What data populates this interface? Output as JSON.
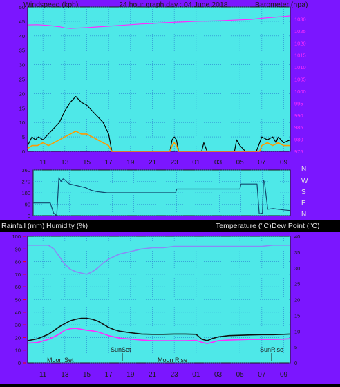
{
  "header": {
    "left": "Windspeed (kph)",
    "center": "24 hour graph day : 04 June 2018",
    "right": "Barometer (hpa)"
  },
  "x_ticks": [
    "11",
    "13",
    "15",
    "17",
    "19",
    "21",
    "23",
    "01",
    "03",
    "05",
    "07",
    "09"
  ],
  "compass": [
    "N",
    "W",
    "S",
    "E",
    "N"
  ],
  "labels_bottom": {
    "rain": "Rainfall (mm)",
    "humidity": "Humidity (%)",
    "temperature": "Temperature (°C)",
    "dewpoint": "Dew Point (°C)"
  },
  "events": [
    "Moon Set",
    "SunSet",
    "Moon Rise",
    "SunRise"
  ],
  "colors": {
    "panel_bg": "#000000",
    "frame": "#7b16ff",
    "plot_bg": "#4ee8e8",
    "grid": "#2a7fd0",
    "baro": "#ff2cff",
    "wind_avg": "#ff9a00",
    "wind_gust": "#000000",
    "humidity": "#8a8af5",
    "temperature": "#101010",
    "dewpoint": "#ff2cff",
    "rain_axis": "#e0002a",
    "text": "#1a1a1a"
  },
  "chart_data": [
    {
      "type": "line",
      "title": "24 hour graph day : 04 June 2018",
      "ylabel": "Windspeed (kph)",
      "ylabel_right": "Barometer (hpa)",
      "ylim": [
        0,
        50
      ],
      "ylim_right": [
        975,
        1035
      ],
      "yticks": [
        0,
        5,
        10,
        15,
        20,
        25,
        30,
        35,
        40,
        45,
        50
      ],
      "yticks_right": [
        975,
        980,
        985,
        990,
        995,
        1000,
        1005,
        1010,
        1015,
        1020,
        1025,
        1030
      ],
      "series": [
        {
          "name": "Barometer (hpa)",
          "x": [
            9.6,
            10.5,
            11.5,
            12.5,
            13,
            13.5,
            14,
            15,
            16,
            17,
            18,
            19,
            20,
            21,
            22,
            23,
            24,
            25,
            26,
            27,
            28,
            29,
            30,
            31,
            32,
            33,
            33.6
          ],
          "values": [
            1027.5,
            1027.6,
            1027.3,
            1026.8,
            1026.3,
            1026.1,
            1026.2,
            1026.4,
            1026.7,
            1027.0,
            1027.3,
            1027.6,
            1027.9,
            1028.1,
            1028.4,
            1028.6,
            1028.8,
            1029.0,
            1029.1,
            1029.2,
            1029.4,
            1029.6,
            1029.8,
            1030.3,
            1030.7,
            1031.0,
            1031.3
          ]
        },
        {
          "name": "Wind gust",
          "x": [
            9.6,
            10,
            10.3,
            10.6,
            11,
            11.5,
            12,
            12.5,
            13,
            13.5,
            14,
            14.5,
            15,
            15.5,
            16,
            16.5,
            17,
            17.3,
            20,
            22.6,
            22.8,
            23,
            23.2,
            23.4,
            24,
            25.5,
            25.7,
            26,
            27,
            28.5,
            28.7,
            29,
            29.5,
            30.5,
            30.8,
            31,
            31.5,
            32,
            32.3,
            32.5,
            33,
            33.6
          ],
          "values": [
            2,
            5,
            4,
            5,
            4,
            6,
            8,
            10,
            14,
            17,
            19,
            17,
            16,
            14,
            12,
            10,
            6,
            0,
            0,
            0,
            4,
            5,
            4,
            0,
            0,
            0,
            3,
            0,
            0,
            0,
            4,
            2,
            0,
            0,
            3,
            5,
            4,
            5,
            3,
            5,
            3,
            4
          ]
        },
        {
          "name": "Wind average",
          "x": [
            9.6,
            10,
            10.5,
            11,
            11.5,
            12,
            12.5,
            13,
            13.5,
            14,
            14.5,
            15,
            15.5,
            16,
            16.5,
            17,
            17.3,
            20,
            22.6,
            22.8,
            23,
            23.2,
            23.4,
            24,
            30.8,
            31,
            31.5,
            32,
            32.5,
            33,
            33.6
          ],
          "values": [
            1,
            2,
            2,
            3,
            2,
            3,
            4,
            5,
            6,
            7,
            6,
            6,
            5,
            4,
            3,
            2,
            0,
            0,
            0,
            2,
            3,
            2,
            0,
            0,
            0,
            2,
            3,
            2,
            3,
            2,
            2
          ]
        }
      ]
    },
    {
      "type": "line",
      "ylim": [
        0,
        360
      ],
      "yticks": [
        0,
        90,
        180,
        270,
        360
      ],
      "series": [
        {
          "name": "Wind direction",
          "x": [
            9.6,
            11.2,
            11.5,
            11.8,
            12.0,
            12.2,
            12.4,
            12.6,
            12.8,
            13,
            13.5,
            14,
            14.5,
            15,
            15.5,
            16,
            16.5,
            17,
            18,
            19,
            20,
            21,
            22,
            22.9,
            23,
            24,
            25,
            26,
            27,
            28,
            28.9,
            29,
            30,
            30.5,
            30.7,
            31,
            31.1,
            31.2,
            31.5,
            32,
            32.5,
            33,
            33.6
          ],
          "values": [
            100,
            100,
            20,
            0,
            300,
            270,
            290,
            280,
            260,
            250,
            240,
            230,
            220,
            200,
            190,
            185,
            180,
            180,
            180,
            180,
            180,
            180,
            180,
            180,
            210,
            210,
            210,
            210,
            210,
            210,
            210,
            250,
            250,
            250,
            15,
            20,
            280,
            260,
            50,
            55,
            50,
            45,
            40
          ]
        }
      ]
    },
    {
      "type": "line",
      "ylim": [
        0,
        100
      ],
      "yticks": [
        0,
        10,
        20,
        30,
        40,
        50,
        60,
        70,
        80,
        90,
        100
      ],
      "ylim_right": [
        0,
        40
      ],
      "yticks_right": [
        0,
        5,
        10,
        15,
        20,
        25,
        30,
        35,
        40
      ],
      "series": [
        {
          "name": "Humidity (%)",
          "x": [
            9.6,
            10.5,
            11.5,
            12,
            12.5,
            13,
            13.5,
            14,
            14.5,
            15,
            15.5,
            16,
            16.5,
            17,
            18,
            19,
            20,
            21,
            22,
            23,
            24,
            25,
            26,
            27,
            28,
            29,
            30,
            31,
            32,
            33,
            33.6
          ],
          "values": [
            93,
            93,
            93,
            90,
            84,
            78,
            74,
            72,
            71,
            70,
            72,
            75,
            79,
            82,
            86,
            88,
            90,
            91,
            91,
            92,
            92,
            92,
            92,
            92,
            92,
            92,
            92,
            92,
            93,
            93,
            93
          ]
        },
        {
          "name": "Temperature (°C)",
          "x": [
            9.6,
            10.5,
            11.5,
            12,
            12.5,
            13,
            13.5,
            14,
            14.5,
            15,
            15.5,
            16,
            16.5,
            17,
            17.5,
            18,
            19,
            20,
            21,
            22,
            23,
            24,
            25,
            25.5,
            26,
            26.5,
            27,
            28,
            29,
            30,
            31,
            32,
            33,
            33.6
          ],
          "values": [
            7.0,
            7.6,
            9.0,
            10.2,
            11.4,
            12.4,
            13.3,
            13.8,
            14.1,
            14.1,
            13.8,
            13.2,
            12.2,
            11.2,
            10.5,
            10.0,
            9.5,
            9.1,
            9.0,
            9.0,
            9.1,
            9.1,
            9.0,
            7.5,
            7.0,
            7.7,
            8.2,
            8.6,
            8.7,
            8.8,
            8.9,
            8.9,
            9.0,
            9.1
          ]
        },
        {
          "name": "Dew Point (°C)",
          "x": [
            9.6,
            10.5,
            11.5,
            12,
            12.5,
            13,
            13.5,
            14,
            14.5,
            15,
            15.5,
            16,
            16.5,
            17,
            18,
            19,
            20,
            21,
            22,
            23,
            24,
            25,
            25.5,
            26,
            26.5,
            27,
            28,
            29,
            30,
            31,
            32,
            33,
            33.6
          ],
          "values": [
            6.2,
            6.4,
            7.4,
            8.2,
            9.1,
            10.3,
            10.8,
            10.9,
            10.6,
            10.3,
            10.1,
            9.8,
            9.2,
            8.6,
            7.8,
            7.5,
            7.2,
            7.0,
            7.0,
            7.0,
            7.0,
            7.1,
            6.5,
            6.1,
            6.5,
            7.0,
            7.2,
            7.3,
            7.4,
            7.4,
            7.4,
            7.5,
            7.6
          ]
        }
      ]
    }
  ]
}
